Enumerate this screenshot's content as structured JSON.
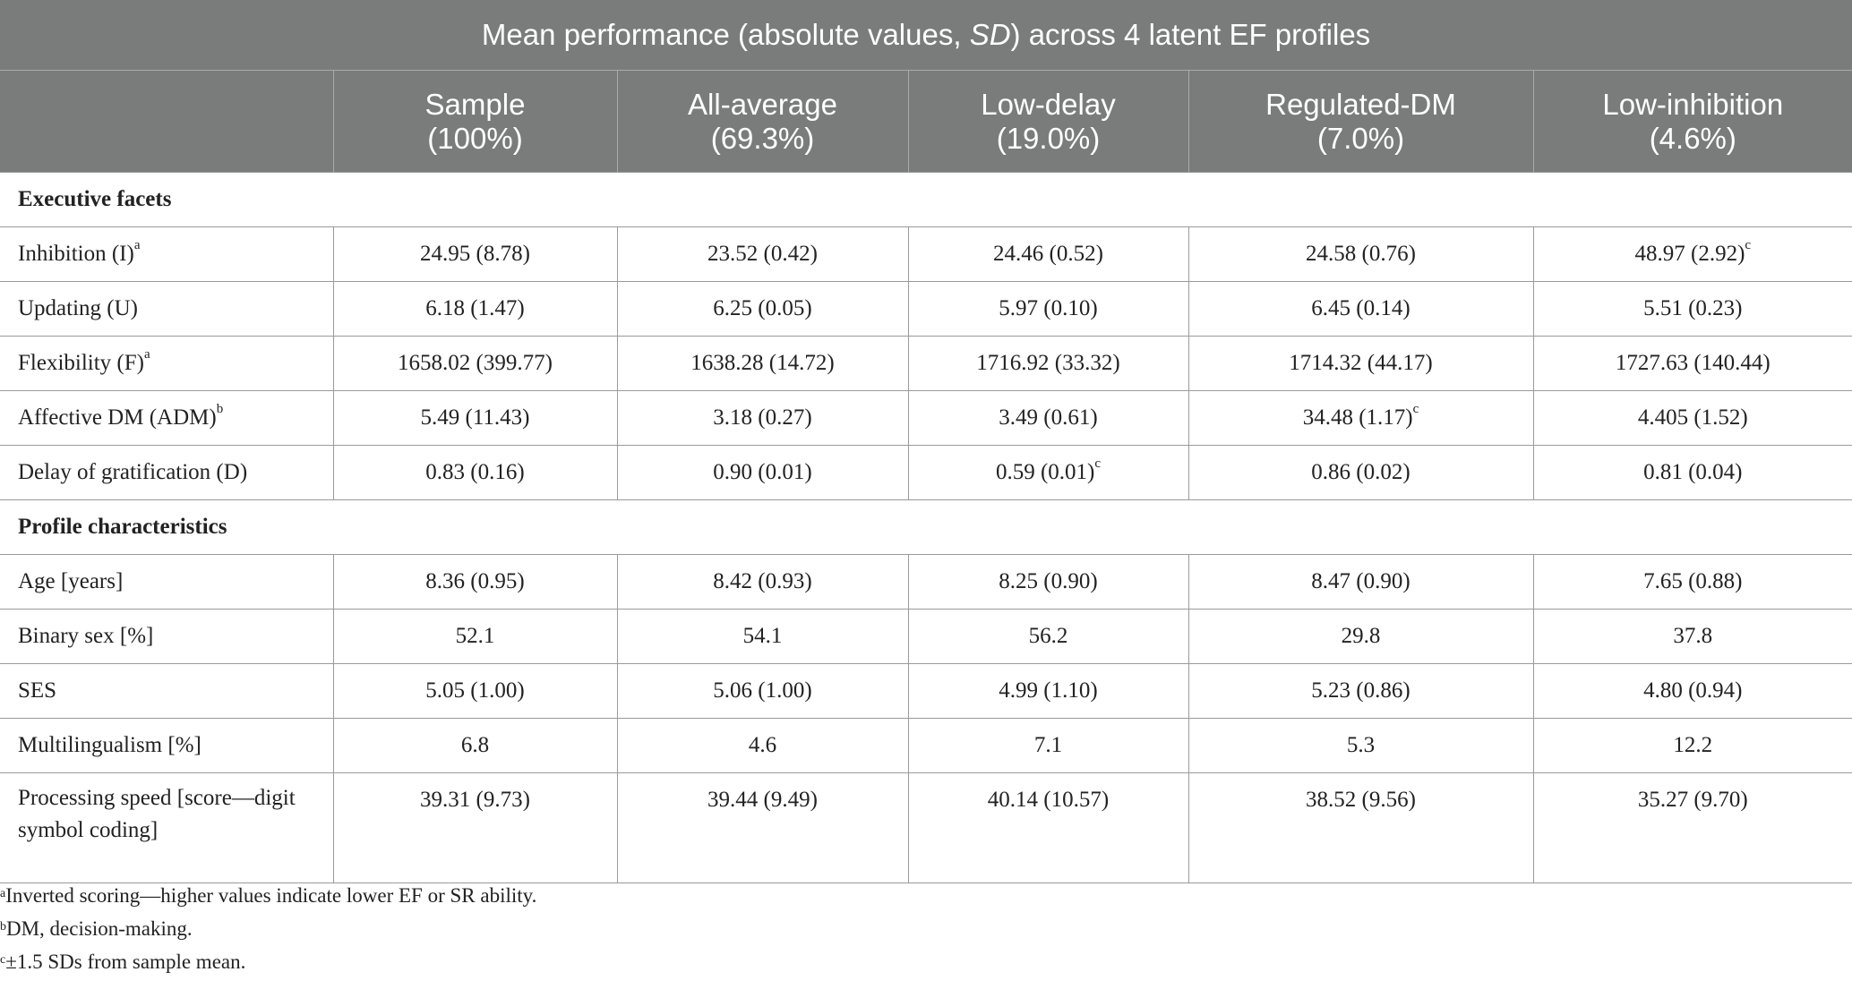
{
  "table": {
    "title": "Mean performance (absolute values, SD) across 4 latent EF profiles",
    "columns": [
      {
        "name": "Sample",
        "pct": "(100%)"
      },
      {
        "name": "All-average",
        "pct": "(69.3%)"
      },
      {
        "name": "Low-delay",
        "pct": "(19.0%)"
      },
      {
        "name": "Regulated-DM",
        "pct": "(7.0%)"
      },
      {
        "name": "Low-inhibition",
        "pct": "(4.6%)"
      }
    ],
    "sections": [
      {
        "title": "Executive facets",
        "rows": [
          {
            "label": "Inhibition (I)",
            "sup": "a",
            "values": [
              "24.95 (8.78)",
              "23.52 (0.42)",
              "24.46 (0.52)",
              "24.58 (0.76)",
              "48.97 (2.92)"
            ],
            "value_sups": [
              "",
              "",
              "",
              "",
              "c"
            ]
          },
          {
            "label": "Updating (U)",
            "sup": "",
            "values": [
              "6.18 (1.47)",
              "6.25 (0.05)",
              "5.97 (0.10)",
              "6.45 (0.14)",
              "5.51 (0.23)"
            ],
            "value_sups": [
              "",
              "",
              "",
              "",
              ""
            ]
          },
          {
            "label": "Flexibility (F)",
            "sup": "a",
            "values": [
              "1658.02 (399.77)",
              "1638.28 (14.72)",
              "1716.92 (33.32)",
              "1714.32 (44.17)",
              "1727.63 (140.44)"
            ],
            "value_sups": [
              "",
              "",
              "",
              "",
              ""
            ]
          },
          {
            "label": "Affective DM (ADM)",
            "sup": "b",
            "values": [
              "5.49 (11.43)",
              "3.18 (0.27)",
              "3.49 (0.61)",
              "34.48 (1.17)",
              "4.405 (1.52)"
            ],
            "value_sups": [
              "",
              "",
              "",
              "c",
              ""
            ]
          },
          {
            "label": "Delay of gratification (D)",
            "sup": "",
            "values": [
              "0.83 (0.16)",
              "0.90 (0.01)",
              "0.59 (0.01)",
              "0.86 (0.02)",
              "0.81 (0.04)"
            ],
            "value_sups": [
              "",
              "",
              "c",
              "",
              ""
            ]
          }
        ]
      },
      {
        "title": "Profile characteristics",
        "rows": [
          {
            "label": "Age [years]",
            "sup": "",
            "values": [
              "8.36 (0.95)",
              "8.42 (0.93)",
              "8.25 (0.90)",
              "8.47 (0.90)",
              "7.65 (0.88)"
            ],
            "value_sups": [
              "",
              "",
              "",
              "",
              ""
            ]
          },
          {
            "label": "Binary sex [%]",
            "sup": "",
            "values": [
              "52.1",
              "54.1",
              "56.2",
              "29.8",
              "37.8"
            ],
            "value_sups": [
              "",
              "",
              "",
              "",
              ""
            ]
          },
          {
            "label": "SES",
            "sup": "",
            "values": [
              "5.05 (1.00)",
              "5.06 (1.00)",
              "4.99 (1.10)",
              "5.23 (0.86)",
              "4.80 (0.94)"
            ],
            "value_sups": [
              "",
              "",
              "",
              "",
              ""
            ]
          },
          {
            "label": "Multilingualism [%]",
            "sup": "",
            "values": [
              "6.8",
              "4.6",
              "7.1",
              "5.3",
              "12.2"
            ],
            "value_sups": [
              "",
              "",
              "",
              "",
              ""
            ]
          },
          {
            "label": "Processing speed [score—digit symbol coding]",
            "sup": "",
            "values": [
              "39.31 (9.73)",
              "39.44 (9.49)",
              "40.14 (10.57)",
              "38.52 (9.56)",
              "35.27 (9.70)"
            ],
            "value_sups": [
              "",
              "",
              "",
              "",
              ""
            ]
          }
        ]
      }
    ]
  },
  "footnotes": [
    {
      "mark": "a",
      "text": "Inverted scoring—higher values indicate lower EF or SR ability."
    },
    {
      "mark": "b",
      "text": "DM, decision-making."
    },
    {
      "mark": "c",
      "text": "±1.5 SDs from sample mean."
    }
  ]
}
